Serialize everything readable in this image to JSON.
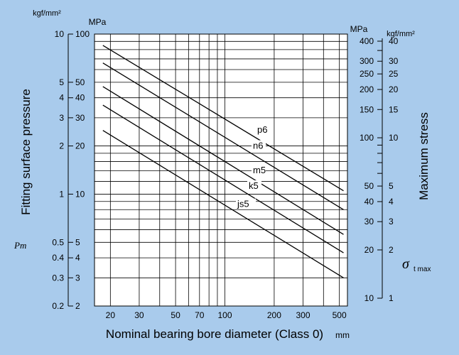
{
  "chart_data": {
    "type": "line",
    "title": "",
    "xlabel": "Nominal bearing bore diameter (Class 0)",
    "xunit": "mm",
    "xscale": "log",
    "xlim": [
      16,
      560
    ],
    "x_ticks": [
      20,
      30,
      50,
      70,
      100,
      200,
      300,
      500
    ],
    "ylabel_left": "Fitting surface pressure",
    "ylabel_left_symbol": "Pm",
    "ylabel_right": "Maximum stress",
    "ylabel_right_symbol_main": "σ",
    "ylabel_right_symbol_sub": "t max",
    "yscale": "log",
    "ylim_MPa": [
      2,
      100
    ],
    "left_units": [
      "kgf/mm²",
      "MPa"
    ],
    "left_ticks_kgf": [
      "0.2",
      "0.3",
      "0.4",
      "0.5",
      "1",
      "2",
      "3",
      "4",
      "5",
      "10"
    ],
    "left_ticks_MPa": [
      "2",
      "3",
      "4",
      "5",
      "10",
      "20",
      "30",
      "40",
      "50",
      "100"
    ],
    "right_units": [
      "MPa",
      "kgf/mm²"
    ],
    "right_ticks_MPa": [
      "10",
      "20",
      "30",
      "40",
      "50",
      "100",
      "150",
      "200",
      "250",
      "300",
      "400"
    ],
    "right_ticks_kgf": [
      "1",
      "2",
      "3",
      "4",
      "5",
      "10",
      "15",
      "20",
      "25",
      "30",
      "40"
    ],
    "grid": true,
    "series": [
      {
        "name": "p6",
        "x": [
          18,
          530
        ],
        "y": [
          85,
          10.5
        ]
      },
      {
        "name": "n6",
        "x": [
          18,
          530
        ],
        "y": [
          66,
          8.0
        ]
      },
      {
        "name": "m5",
        "x": [
          18,
          530
        ],
        "y": [
          47,
          5.6
        ]
      },
      {
        "name": "k5",
        "x": [
          18,
          530
        ],
        "y": [
          36,
          4.3
        ]
      },
      {
        "name": "js5",
        "x": [
          18,
          530
        ],
        "y": [
          25,
          3.0
        ]
      }
    ]
  }
}
